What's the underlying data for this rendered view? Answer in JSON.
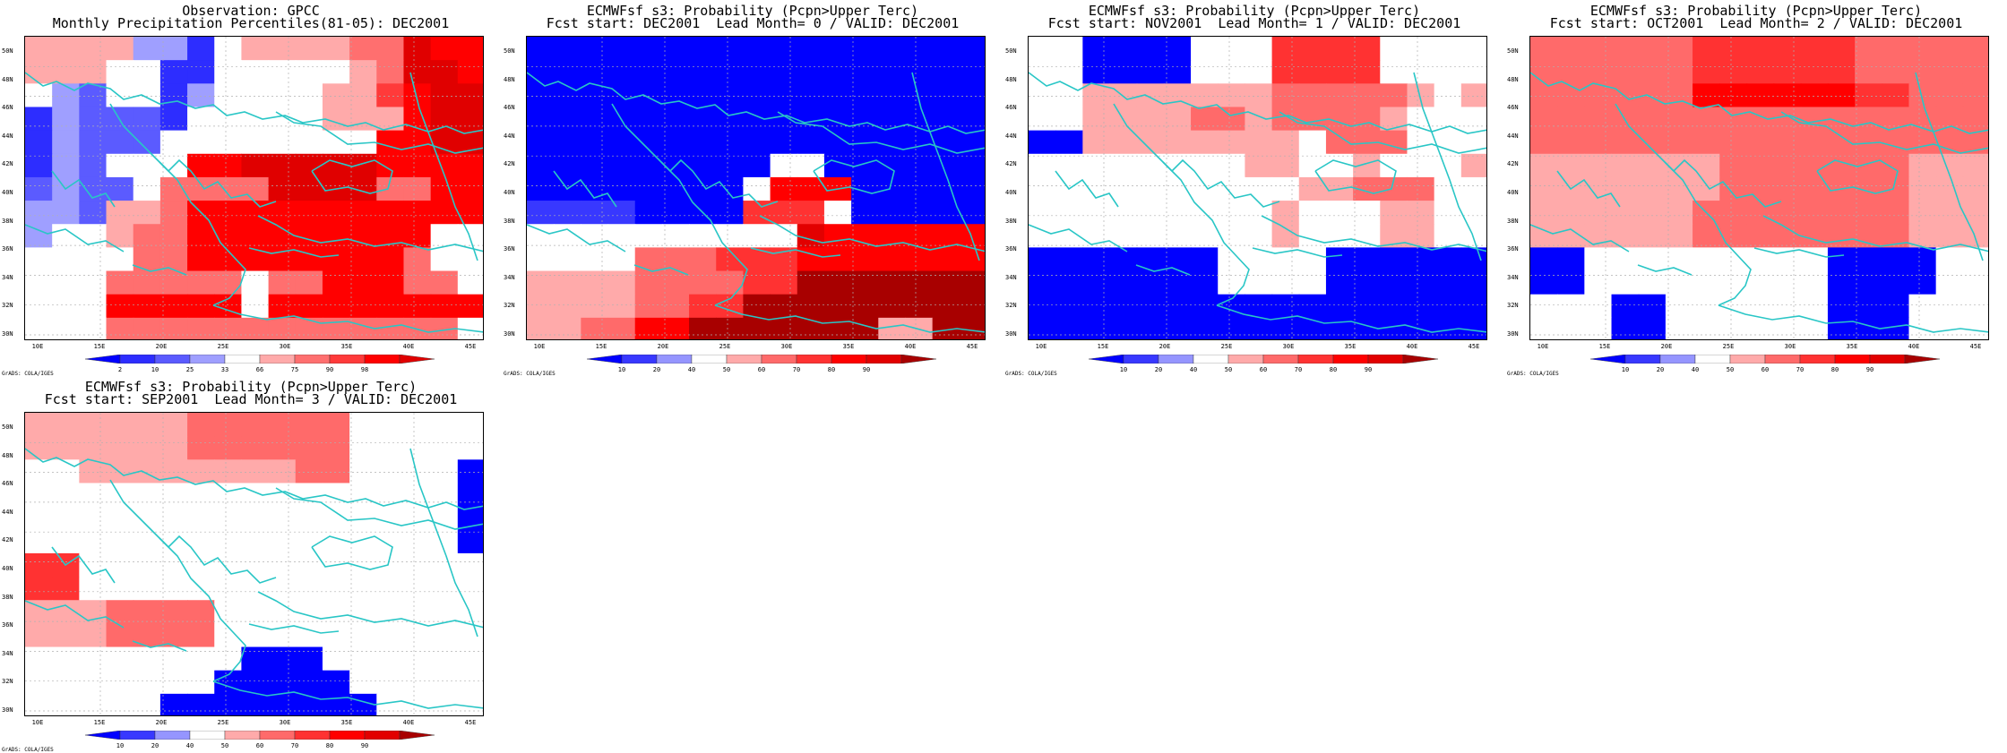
{
  "ylabels": [
    "50N",
    "48N",
    "46N",
    "44N",
    "42N",
    "40N",
    "38N",
    "36N",
    "34N",
    "32N",
    "30N"
  ],
  "xlabels": [
    "10E",
    "15E",
    "20E",
    "25E",
    "30E",
    "35E",
    "40E",
    "45E"
  ],
  "credit": "GrADS: COLA/IGES",
  "colors": {
    "coast": "#29c6c6",
    "grid": "#b0b0b0",
    "prob_scale": [
      "#0000ff",
      "#3838ff",
      "#9595ff",
      "#ffffff",
      "#ffaaaa",
      "#ff6a6a",
      "#ff3232",
      "#ff0000",
      "#e20000",
      "#a80000"
    ],
    "obs_scale": [
      "#0000ff",
      "#2d2dff",
      "#5b5bff",
      "#9f9fff",
      "#ffffff",
      "#ffaaaa",
      "#ff6f6f",
      "#ff3a3a",
      "#ff0000",
      "#e00000"
    ]
  },
  "panels": [
    {
      "title1": "Observation: GPCC",
      "title2": "Monthly Precipitation Percentiles(81-05): DEC2001",
      "colorbar": [
        "2",
        "10",
        "25",
        "33",
        "66",
        "75",
        "90",
        "98"
      ],
      "grid": [
        "55553314555566988",
        "55544114444456998",
        "43244134444557899",
        "13222144444555899",
        "13222444444448899",
        "13244488999998888",
        "23224666699996688",
        "33255688888888888",
        "34456688888888844",
        "44446688888888644",
        "44466666466888664",
        "44488888488888888",
        "44466666666666664"
      ]
    },
    {
      "title1": "ECMWFsf s3: Probability (Pcpn>Upper Terc)",
      "title2": "Fcst start: DEC2001  Lead Month= 0 / VALID: DEC2001",
      "colorbar": [
        "10",
        "20",
        "40",
        "50",
        "60",
        "70",
        "80",
        "90"
      ],
      "grid": [
        "00000000000000000",
        "00000000000000000",
        "00000000000000000",
        "00000000000000000",
        "00000000000000000",
        "00000000033000000",
        "00000000377700000",
        "11110000666300000",
        "33333333338777777",
        "33335556667777777",
        "44445555669999999",
        "44445566999999999",
        "44557799999994499"
      ]
    },
    {
      "title1": "ECMWFsf s3: Probability (Pcpn>Upper Terc)",
      "title2": "Fcst start: NOV2001  Lead Month= 1 / VALID: DEC2001",
      "colorbar": [
        "10",
        "20",
        "40",
        "50",
        "60",
        "70",
        "80",
        "90"
      ],
      "grid": [
        "33000033366663333",
        "33000033366663333",
        "33444444455555434",
        "33444455455554333",
        "00444444443555333",
        "33333333443343334",
        "33333333334455533",
        "33333333343334433",
        "33333333343334433",
        "00000003333000000",
        "00000003333000000",
        "00000000000000000",
        "00000000000000000"
      ]
    },
    {
      "title1": "ECMWFsf s3: Probability (Pcpn>Upper Terc)",
      "title2": "Fcst start: OCT2001  Lead Month= 2 / VALID: DEC2001",
      "colorbar": [
        "10",
        "20",
        "40",
        "50",
        "60",
        "70",
        "80",
        "90"
      ],
      "grid": [
        "55555566666655555",
        "55555566666655555",
        "55555577777766555",
        "55555555555555555",
        "55555555555555555",
        "44444445555555444",
        "44444445555555444",
        "44444455555555444",
        "44444455555555444",
        "00333333333000033",
        "00333333333000033",
        "33300333333000333",
        "33300333333000333"
      ]
    },
    {
      "title1": "ECMWFsf s3: Probability (Pcpn>Upper Terc)",
      "title2": "Fcst start: SEP2001  Lead Month= 3 / VALID: DEC2001",
      "colorbar": [
        "10",
        "20",
        "40",
        "50",
        "60",
        "70",
        "80",
        "90"
      ],
      "grid": [
        "44444455555533333",
        "44444455555533333",
        "33444444445533330",
        "33333333333333330",
        "33333333333333330",
        "33333333333333330",
        "66333333333333333",
        "66333333333333333",
        "44455553333333333",
        "44455553333333333",
        "33333333000333333",
        "33333330000033333",
        "33333000000003333"
      ]
    }
  ]
}
